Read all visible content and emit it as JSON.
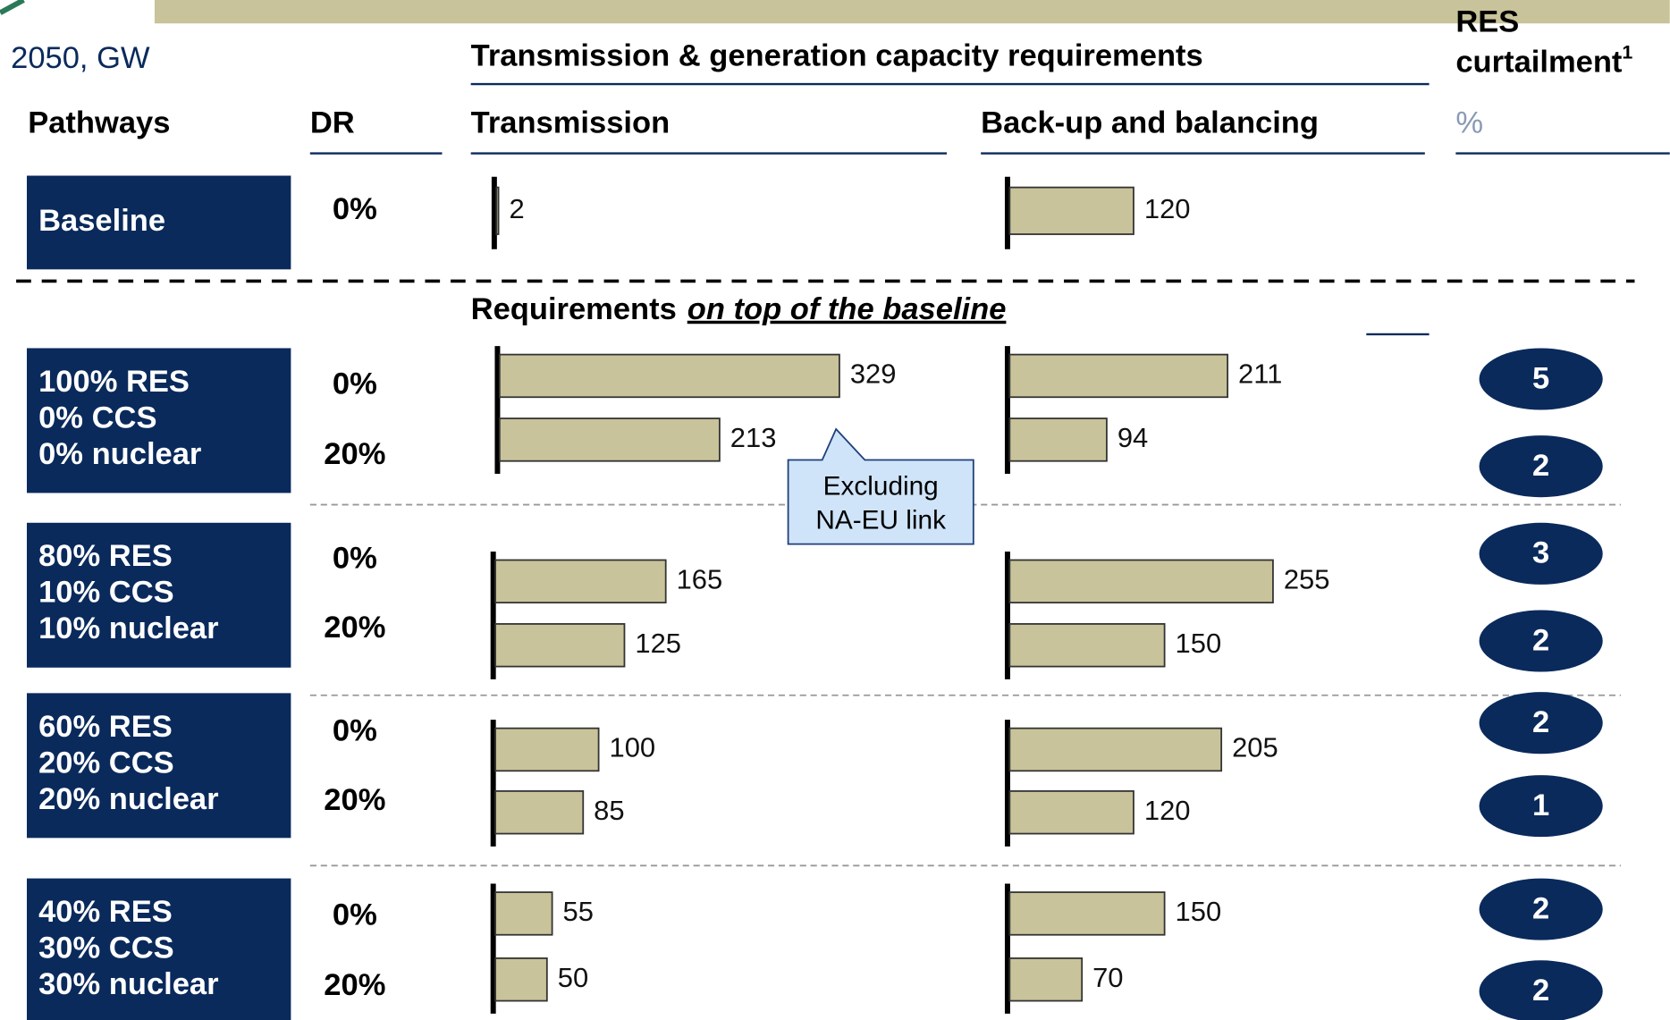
{
  "header": {
    "unit": "2050, GW",
    "title": "Transmission & generation capacity requirements",
    "curtailment_title": [
      "RES",
      "curtailment"
    ],
    "curtailment_sup": "1",
    "curtailment_unit": "%"
  },
  "columns": {
    "pathways": "Pathways",
    "dr": "DR",
    "transmission": "Transmission",
    "backup": "Back-up and balancing"
  },
  "baseline": {
    "label": "Baseline",
    "dr": "0%",
    "transmission": 2,
    "backup": 120
  },
  "subtitle": {
    "plain": "Requirements",
    "italic": "on top of the baseline"
  },
  "callout": [
    "Excluding",
    "NA-EU link"
  ],
  "pathways": [
    {
      "label": [
        "100% RES",
        "0% CCS",
        "0% nuclear"
      ],
      "dr": [
        "0%",
        "20%"
      ],
      "transmission": [
        329,
        213
      ],
      "backup": [
        211,
        94
      ],
      "curtailment": [
        5,
        2
      ]
    },
    {
      "label": [
        "80% RES",
        "10% CCS",
        "10% nuclear"
      ],
      "dr": [
        "0%",
        "20%"
      ],
      "transmission": [
        165,
        125
      ],
      "backup": [
        255,
        150
      ],
      "curtailment": [
        3,
        2
      ]
    },
    {
      "label": [
        "60% RES",
        "20% CCS",
        "20% nuclear"
      ],
      "dr": [
        "0%",
        "20%"
      ],
      "transmission": [
        100,
        85
      ],
      "backup": [
        205,
        120
      ],
      "curtailment": [
        2,
        1
      ]
    },
    {
      "label": [
        "40% RES",
        "30% CCS",
        "30% nuclear"
      ],
      "dr": [
        "0%",
        "20%"
      ],
      "transmission": [
        55,
        50
      ],
      "backup": [
        150,
        70
      ],
      "curtailment": [
        2,
        2
      ]
    }
  ]
}
